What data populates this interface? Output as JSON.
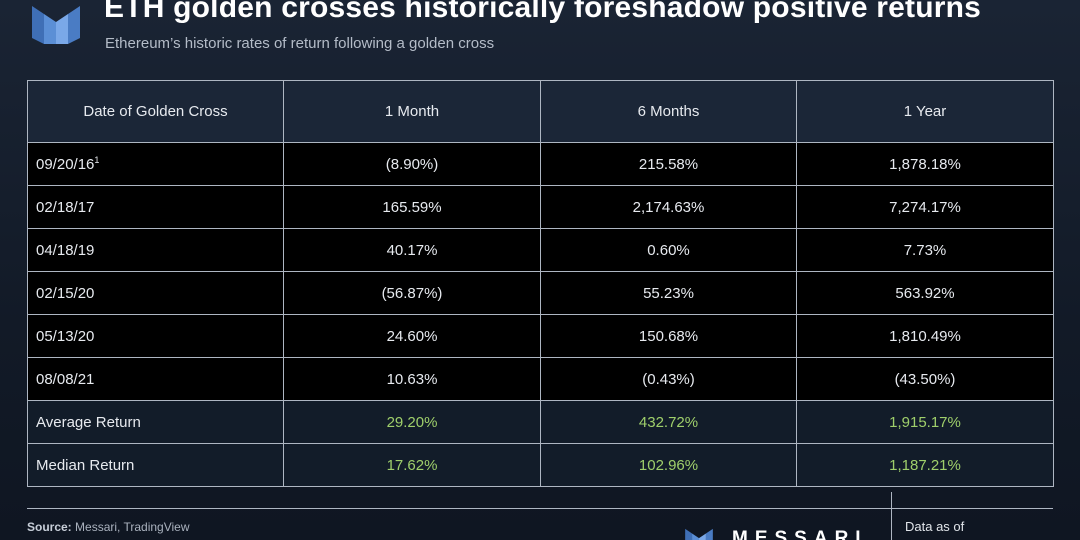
{
  "header": {
    "title": "ETH golden crosses historically foreshadow positive returns",
    "subtitle": "Ethereum’s historic rates of return following a golden cross"
  },
  "colors": {
    "summary_value": "#9fcf6b",
    "logo_blue": "#5b8fd6"
  },
  "chart_data": {
    "type": "table",
    "columns": [
      "Date of Golden Cross",
      "1 Month",
      "6 Months",
      "1 Year"
    ],
    "rows": [
      {
        "date": "09/20/16",
        "footnote": "1",
        "m1": "(8.90%)",
        "m6": "215.58%",
        "y1": "1,878.18%"
      },
      {
        "date": "02/18/17",
        "footnote": "",
        "m1": "165.59%",
        "m6": "2,174.63%",
        "y1": "7,274.17%"
      },
      {
        "date": "04/18/19",
        "footnote": "",
        "m1": "40.17%",
        "m6": "0.60%",
        "y1": "7.73%"
      },
      {
        "date": "02/15/20",
        "footnote": "",
        "m1": "(56.87%)",
        "m6": "55.23%",
        "y1": "563.92%"
      },
      {
        "date": "05/13/20",
        "footnote": "",
        "m1": "24.60%",
        "m6": "150.68%",
        "y1": "1,810.49%"
      },
      {
        "date": "08/08/21",
        "footnote": "",
        "m1": "10.63%",
        "m6": "(0.43%)",
        "y1": "(43.50%)"
      }
    ],
    "summary": [
      {
        "label": "Average Return",
        "m1": "29.20%",
        "m6": "432.72%",
        "y1": "1,915.17%"
      },
      {
        "label": "Median Return",
        "m1": "17.62%",
        "m6": "102.96%",
        "y1": "1,187.21%"
      }
    ]
  },
  "footer": {
    "source_label": "Source:",
    "source_text": "Messari, TradingView",
    "brand": "MESSARI",
    "data_as_of": "Data as of"
  }
}
